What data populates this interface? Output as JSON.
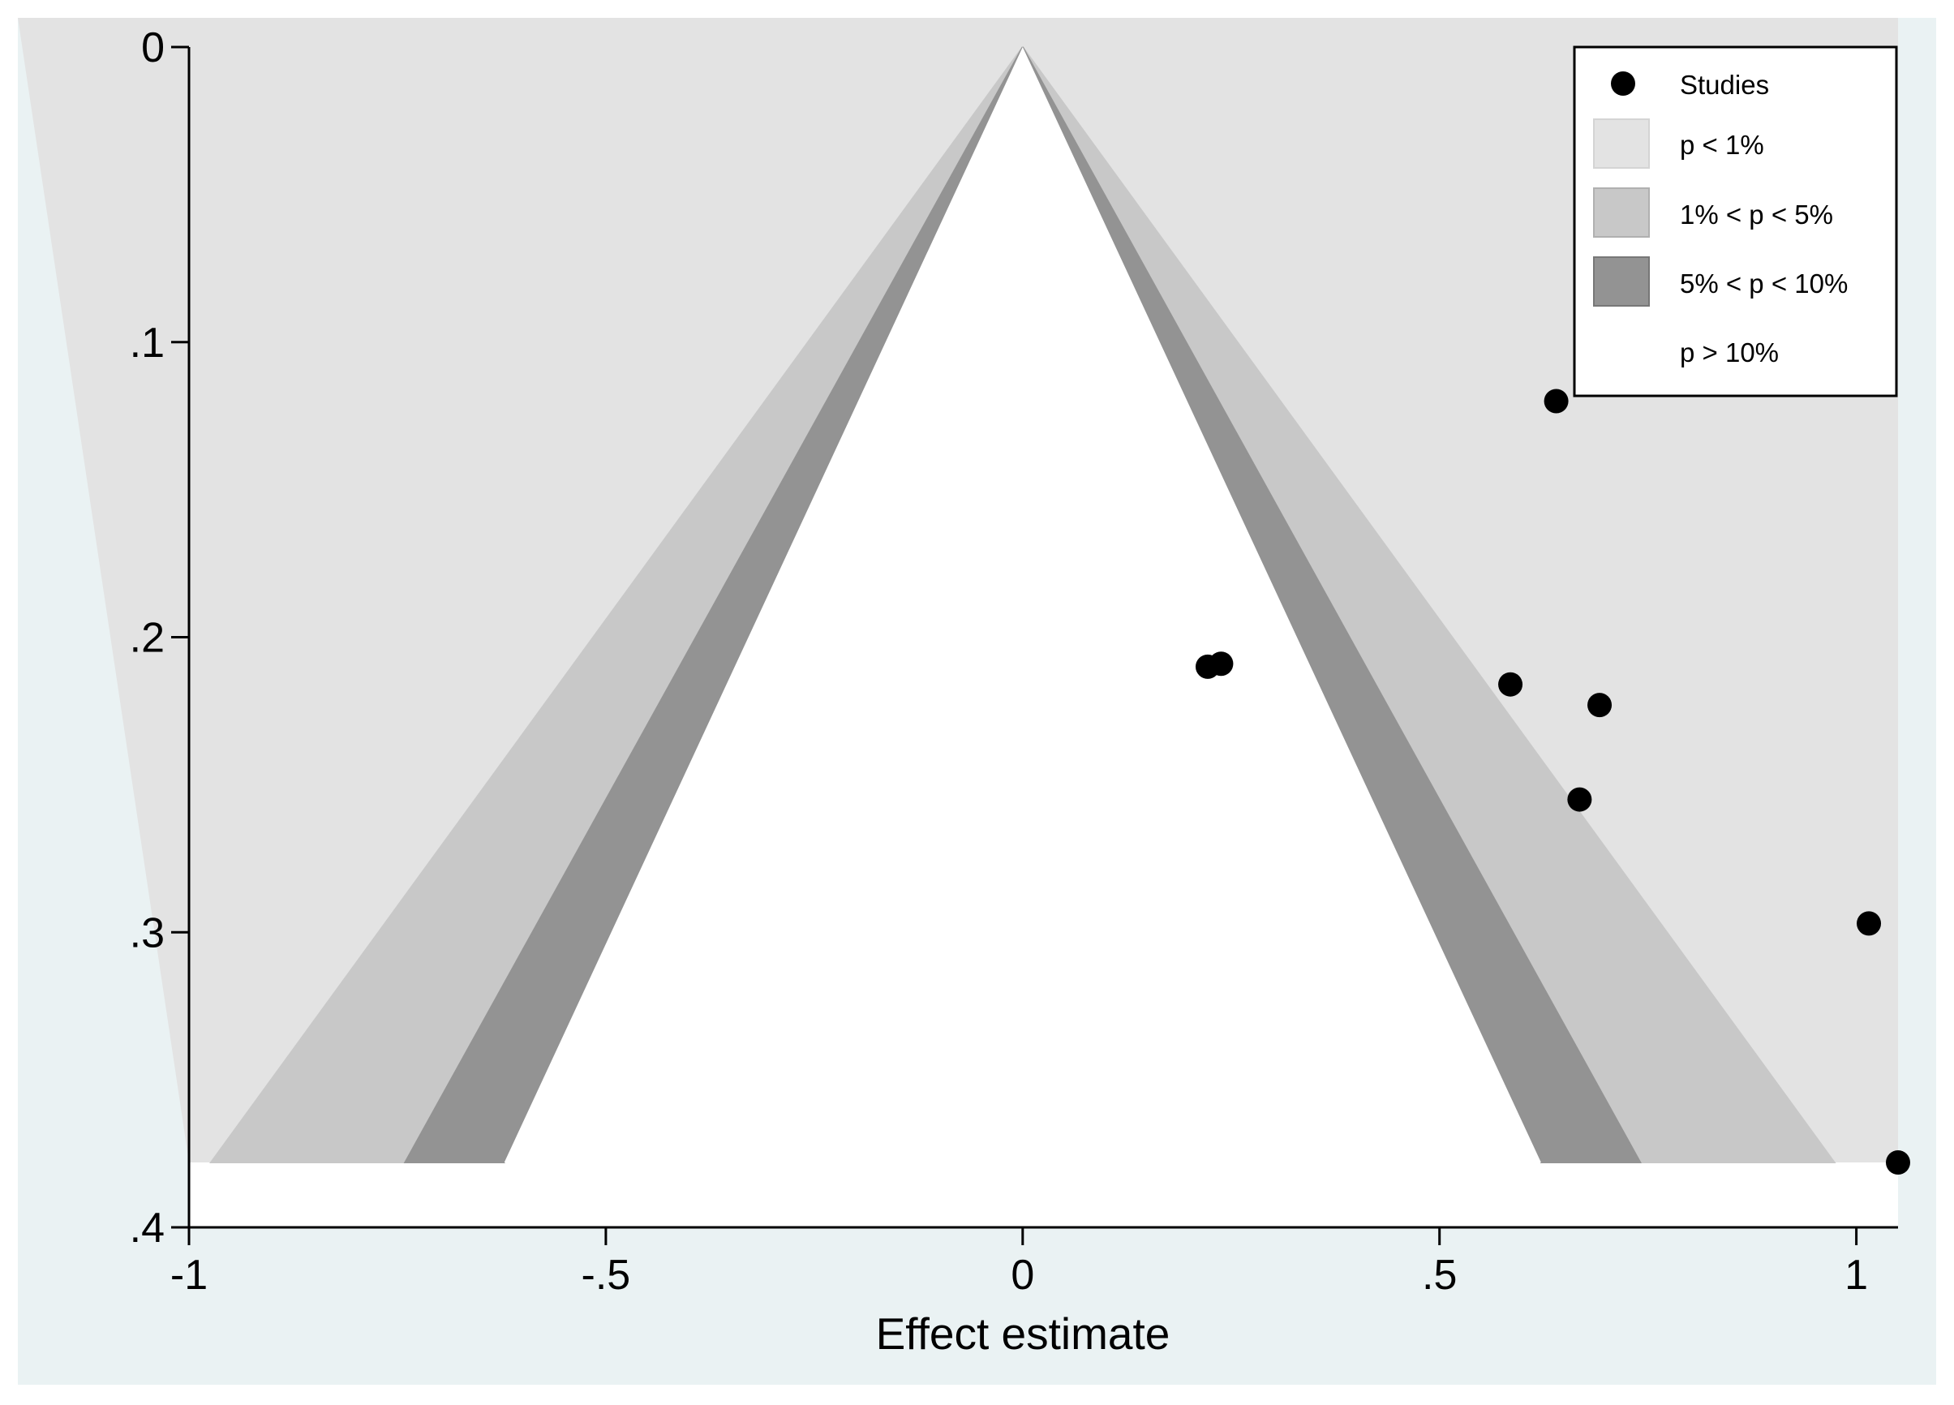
{
  "chart_data": {
    "type": "scatter",
    "title": "",
    "xlabel": "Effect estimate",
    "ylabel": "",
    "xlim": [
      -1,
      1.05
    ],
    "ylim": [
      0,
      0.4
    ],
    "y_reversed": true,
    "x_ticks": [
      {
        "value": -1,
        "label": "-1"
      },
      {
        "value": -0.5,
        "label": "-.5"
      },
      {
        "value": 0,
        "label": "0"
      },
      {
        "value": 0.5,
        "label": ".5"
      },
      {
        "value": 1,
        "label": "1"
      }
    ],
    "y_ticks": [
      {
        "value": 0,
        "label": "0"
      },
      {
        "value": 0.1,
        "label": ".1"
      },
      {
        "value": 0.2,
        "label": ".2"
      },
      {
        "value": 0.3,
        "label": ".3"
      },
      {
        "value": 0.4,
        "label": ".4"
      }
    ],
    "contour_max_se": 0.378,
    "contours": [
      {
        "name": "5% < p < 10%",
        "z_outer": 1.96,
        "z_inner": 1.645,
        "color": "#939393"
      },
      {
        "name": "1% < p < 5%",
        "z_outer": 2.576,
        "z_inner": 1.96,
        "color": "#c8c8c8"
      }
    ],
    "outer_region_color": "#e3e3e3",
    "background_color": "#eaf2f3",
    "legend": {
      "position": "top-right",
      "items": [
        {
          "label": "Studies",
          "kind": "marker",
          "color": "#000000"
        },
        {
          "label": "p < 1%",
          "kind": "swatch",
          "color": "#e3e3e3"
        },
        {
          "label": "1% < p < 5%",
          "kind": "swatch",
          "color": "#c8c8c8"
        },
        {
          "label": "5% < p < 10%",
          "kind": "swatch",
          "color": "#939393"
        },
        {
          "label": "p > 10%",
          "kind": "swatch",
          "color": "#ffffff"
        }
      ]
    },
    "series": [
      {
        "name": "Studies",
        "points": [
          {
            "x": 0.64,
            "y": 0.12
          },
          {
            "x": 0.222,
            "y": 0.21
          },
          {
            "x": 0.238,
            "y": 0.209
          },
          {
            "x": 0.585,
            "y": 0.216
          },
          {
            "x": 0.692,
            "y": 0.223
          },
          {
            "x": 0.668,
            "y": 0.255
          },
          {
            "x": 1.015,
            "y": 0.297
          },
          {
            "x": 1.05,
            "y": 0.378
          }
        ]
      }
    ]
  }
}
